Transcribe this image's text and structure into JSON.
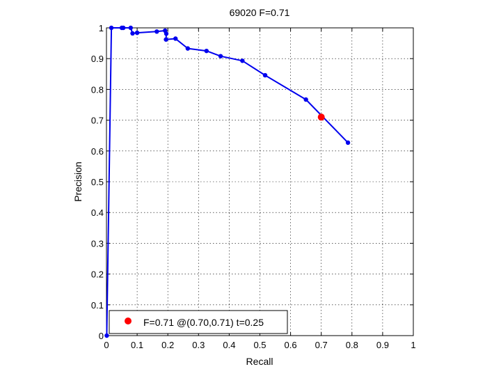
{
  "chart_data": {
    "type": "line",
    "title": "69020 F=0.71",
    "xlabel": "Recall",
    "ylabel": "Precision",
    "xlim": [
      0,
      1
    ],
    "ylim": [
      0,
      1
    ],
    "xticks": [
      "0",
      "0.1",
      "0.2",
      "0.3",
      "0.4",
      "0.5",
      "0.6",
      "0.7",
      "0.8",
      "0.9",
      "1"
    ],
    "yticks": [
      "0",
      "0.1",
      "0.2",
      "0.3",
      "0.4",
      "0.5",
      "0.6",
      "0.7",
      "0.8",
      "0.9",
      "1"
    ],
    "grid": true,
    "legend_position": "bottom-left",
    "series": [
      {
        "color": "#0000ee",
        "x": [
          0.787,
          0.65,
          0.517,
          0.443,
          0.372,
          0.326,
          0.265,
          0.225,
          0.194,
          0.195,
          0.191,
          0.164,
          0.1,
          0.085,
          0.079,
          0.055,
          0.05,
          0.016,
          0.001
        ],
        "y": [
          0.627,
          0.767,
          0.846,
          0.893,
          0.908,
          0.925,
          0.933,
          0.965,
          0.962,
          0.981,
          0.991,
          0.988,
          0.984,
          0.982,
          1.0,
          1.0,
          1.0,
          1.0,
          0.0
        ]
      }
    ],
    "highlight": {
      "color": "#ff0000",
      "x": 0.7,
      "y": 0.71,
      "label": "F=0.71 @(0.70,0.71) t=0.25"
    }
  }
}
